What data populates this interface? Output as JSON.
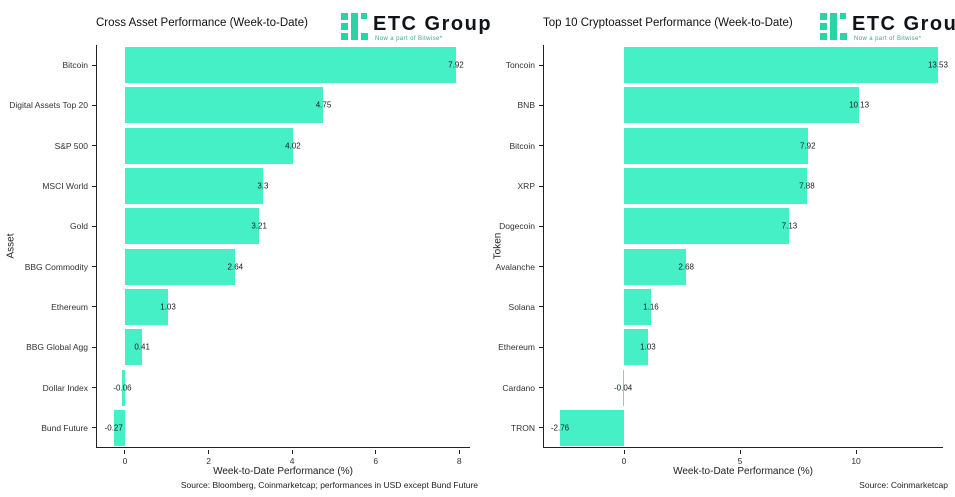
{
  "logo": {
    "name": "ETC Group",
    "tagline": "Now a part of Bitwise*",
    "icon": "etc-group-blocks-logo-mark",
    "brand_color": "#29D3A5"
  },
  "accent_color": "#45F0C6",
  "chart_data": [
    {
      "type": "bar",
      "orientation": "horizontal",
      "title": "Cross Asset Performance (Week-to-Date)",
      "categories": [
        "Bitcoin",
        "Digital Assets Top 20",
        "S&P 500",
        "MSCI World",
        "Gold",
        "BBG Commodity",
        "Ethereum",
        "BBG Global Agg",
        "Dollar Index",
        "Bund Future"
      ],
      "values": [
        7.92,
        4.75,
        4.02,
        3.3,
        3.21,
        2.64,
        1.03,
        0.41,
        -0.06,
        -0.27
      ],
      "value_labels": [
        "7.92",
        "4.75",
        "4.02",
        "3.3",
        "3.21",
        "2.64",
        "1.03",
        "0.41",
        "-0.06",
        "-0.27"
      ],
      "xlabel": "Week-to-Date Performance (%)",
      "ylabel": "Asset",
      "xticks": [
        0,
        2,
        4,
        6,
        8
      ],
      "xtick_labels": [
        "0",
        "2",
        "4",
        "6",
        "8"
      ],
      "xlim": [
        -0.67,
        8.28
      ],
      "grid": false,
      "legend": false,
      "bar_color": "#45F0C6",
      "source": "Source: Bloomberg, Coinmarketcap; performances in USD except Bund Future"
    },
    {
      "type": "bar",
      "orientation": "horizontal",
      "title": "Top 10 Cryptoasset Performance (Week-to-Date)",
      "categories": [
        "Toncoin",
        "BNB",
        "Bitcoin",
        "XRP",
        "Dogecoin",
        "Avalanche",
        "Solana",
        "Ethereum",
        "Cardano",
        "TRON"
      ],
      "values": [
        13.53,
        10.13,
        7.92,
        7.88,
        7.13,
        2.68,
        1.16,
        1.03,
        -0.04,
        -2.76
      ],
      "value_labels": [
        "13.53",
        "10.13",
        "7.92",
        "7.88",
        "7.13",
        "2.68",
        "1.16",
        "1.03",
        "-0.04",
        "-2.76"
      ],
      "xlabel": "Week-to-Date Performance (%)",
      "ylabel": "Token",
      "xticks": [
        0,
        5,
        10
      ],
      "xtick_labels": [
        "0",
        "5",
        "10"
      ],
      "xlim": [
        -3.45,
        13.79
      ],
      "grid": false,
      "legend": false,
      "bar_color": "#45F0C6",
      "source": "Source: Coinmarketcap"
    }
  ]
}
